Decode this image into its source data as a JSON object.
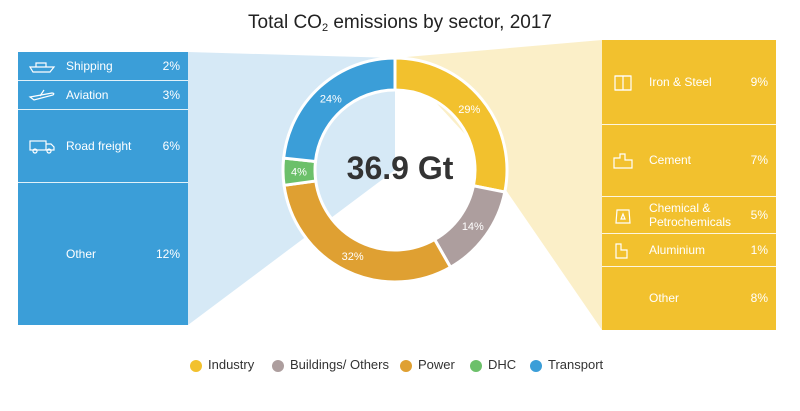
{
  "chart_data": {
    "type": "pie",
    "title_main": "Total CO",
    "title_sub": "2",
    "title_rest": " emissions by sector, 2017",
    "center_value": "36.9 Gt",
    "slices": [
      {
        "name": "Industry",
        "value": 29,
        "label": "29%",
        "color": "#F2C12E"
      },
      {
        "name": "Buildings/ Others",
        "value": 14,
        "label": "14%",
        "color": "#AD9E9E"
      },
      {
        "name": "Power",
        "value": 32,
        "label": "32%",
        "color": "#DFA032"
      },
      {
        "name": "DHC",
        "value": 4,
        "label": "4%",
        "color": "#6CC06A"
      },
      {
        "name": "Transport",
        "value": 24,
        "label": "24%",
        "color": "#3B9ED8"
      }
    ],
    "transport_breakdown": [
      {
        "name": "Shipping",
        "value": 2,
        "label": "2%",
        "icon": "ship-icon"
      },
      {
        "name": "Aviation",
        "value": 3,
        "label": "3%",
        "icon": "plane-icon"
      },
      {
        "name": "Road freight",
        "value": 6,
        "label": "6%",
        "icon": "truck-icon"
      },
      {
        "name": "Other",
        "value": 12,
        "label": "12%",
        "icon": ""
      }
    ],
    "industry_breakdown": [
      {
        "name": "Iron & Steel",
        "value": 9,
        "label": "9%",
        "icon": "steel-beam-icon"
      },
      {
        "name": "Cement",
        "value": 7,
        "label": "7%",
        "icon": "cement-plant-icon"
      },
      {
        "name": "Chemical &\nPetrochemicals",
        "value": 5,
        "label": "5%",
        "icon": "chemical-bag-icon"
      },
      {
        "name": "Aluminium",
        "value": 1,
        "label": "1%",
        "icon": "aluminium-icon"
      },
      {
        "name": "Other",
        "value": 8,
        "label": "8%",
        "icon": ""
      }
    ],
    "legend": [
      "Industry",
      "Buildings/ Others",
      "Power",
      "DHC",
      "Transport"
    ]
  },
  "colors": {
    "transport_panel": "#3B9ED8",
    "transport_wedge": "#D6E9F6",
    "industry_panel": "#F2C12E",
    "industry_wedge": "#FBEFC8"
  }
}
